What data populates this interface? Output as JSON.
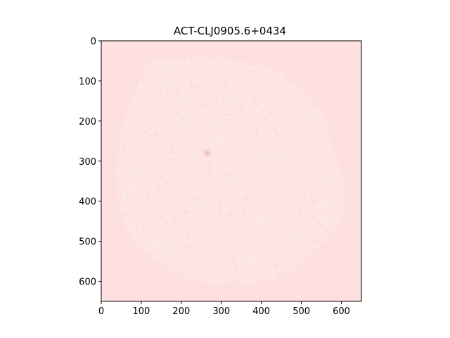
{
  "chart_data": {
    "type": "heatmap",
    "title": "ACT-CLJ0905.6+0434",
    "xlabel": "",
    "ylabel": "",
    "xlim": [
      0,
      650
    ],
    "ylim": [
      650,
      0
    ],
    "x_ticks": [
      "0",
      "100",
      "200",
      "300",
      "400",
      "500",
      "600"
    ],
    "y_ticks": [
      "0",
      "100",
      "200",
      "300",
      "400",
      "500",
      "600"
    ],
    "grid": false,
    "legend": "none",
    "colors": {
      "background": "#ffe0e1",
      "region": "#fde6e2",
      "speckle_light": "#ffffff",
      "speckle_warm": "#f4b6a8",
      "speckle_pink": "#f9c4c4",
      "center_spot": "#f3bcbc"
    },
    "features": {
      "emission_region_boundary": [
        [
          120,
          50
        ],
        [
          200,
          45
        ],
        [
          290,
          40
        ],
        [
          360,
          55
        ],
        [
          420,
          65
        ],
        [
          470,
          95
        ],
        [
          500,
          130
        ],
        [
          540,
          165
        ],
        [
          560,
          200
        ],
        [
          570,
          240
        ],
        [
          585,
          290
        ],
        [
          600,
          340
        ],
        [
          608,
          390
        ],
        [
          600,
          450
        ],
        [
          560,
          500
        ],
        [
          520,
          540
        ],
        [
          470,
          575
        ],
        [
          420,
          595
        ],
        [
          350,
          605
        ],
        [
          270,
          605
        ],
        [
          200,
          585
        ],
        [
          130,
          545
        ],
        [
          70,
          490
        ],
        [
          45,
          420
        ],
        [
          40,
          330
        ],
        [
          45,
          250
        ],
        [
          60,
          190
        ],
        [
          85,
          130
        ],
        [
          110,
          80
        ]
      ],
      "center_spot": [
        265,
        280
      ]
    }
  }
}
